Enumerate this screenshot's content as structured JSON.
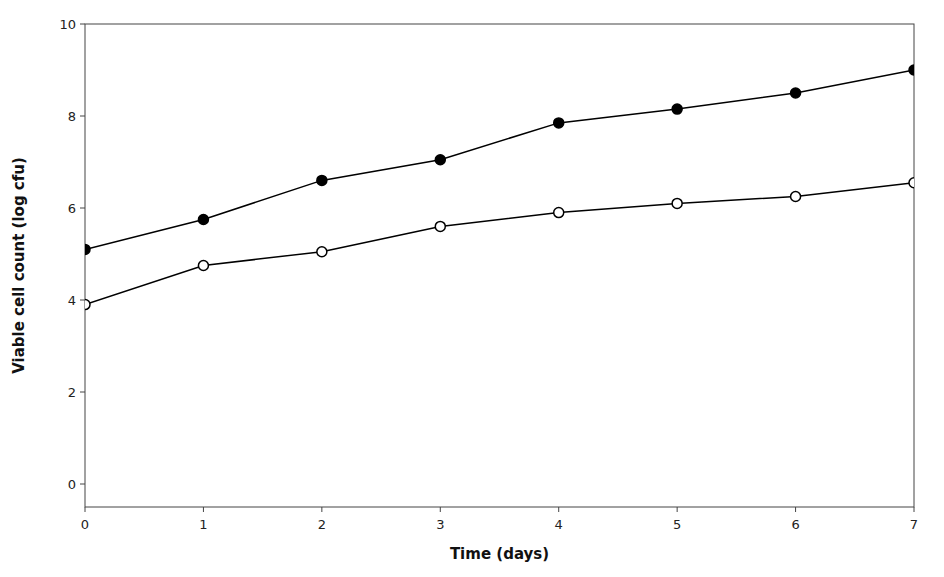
{
  "chart_data": {
    "type": "line",
    "x": [
      0,
      1,
      2,
      3,
      4,
      5,
      6,
      7
    ],
    "series": [
      {
        "color": "#000000",
        "marker": "circle",
        "values": [
          5.1,
          5.75,
          6.6,
          7.05,
          7.85,
          8.15,
          8.5,
          9.0
        ]
      },
      {
        "color": "#000000",
        "marker": "open-circle",
        "values": [
          3.9,
          4.75,
          5.05,
          5.6,
          5.9,
          6.1,
          6.25,
          6.55
        ]
      }
    ],
    "xlabel": "Time (days)",
    "ylabel": "Viable cell count (log cfu)",
    "xlim": [
      0,
      7
    ],
    "ylim": [
      -0.5,
      10
    ],
    "xticks": [
      0,
      1,
      2,
      3,
      4,
      5,
      6,
      7
    ],
    "yticks": [
      0,
      2,
      4,
      6,
      8,
      10
    ],
    "grid": false
  }
}
